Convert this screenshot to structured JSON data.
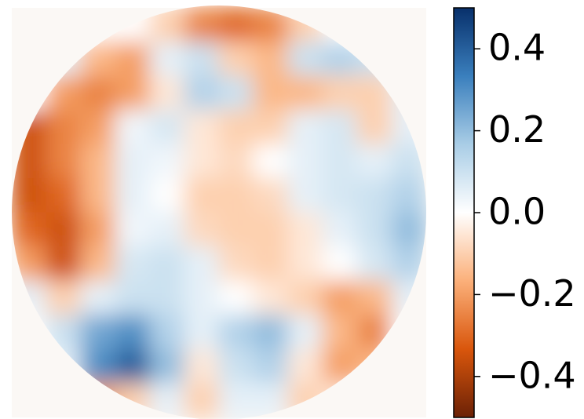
{
  "chart_data": {
    "type": "heatmap",
    "z": [
      [
        0,
        0,
        0,
        0,
        -0.1,
        -0.25,
        -0.3,
        -0.25,
        -0.1,
        0,
        0,
        0
      ],
      [
        0,
        0.05,
        -0.15,
        -0.2,
        0.05,
        0.1,
        -0.1,
        -0.15,
        0.1,
        0.15,
        0.1,
        0
      ],
      [
        0,
        -0.2,
        -0.25,
        -0.2,
        -0.05,
        0.15,
        0.1,
        -0.15,
        -0.15,
        -0.1,
        -0.1,
        0.05
      ],
      [
        -0.35,
        -0.25,
        -0.2,
        0.03,
        0.08,
        -0.05,
        -0.1,
        -0.1,
        0.05,
        0.08,
        -0.1,
        0.05
      ],
      [
        -0.35,
        -0.25,
        -0.15,
        0.05,
        0.03,
        -0.05,
        -0.08,
        0,
        0.05,
        0.08,
        0.05,
        0.1
      ],
      [
        -0.35,
        -0.3,
        -0.15,
        0.05,
        0,
        -0.1,
        -0.1,
        -0.08,
        0.05,
        0.08,
        0.1,
        0.15
      ],
      [
        -0.3,
        -0.35,
        -0.2,
        0.03,
        0.05,
        -0.08,
        -0.1,
        -0.1,
        -0.05,
        0.05,
        0.1,
        0.2
      ],
      [
        -0.2,
        -0.35,
        -0.15,
        0.08,
        0.1,
        0.05,
        -0.08,
        -0.1,
        -0.05,
        0,
        0.08,
        0.15
      ],
      [
        0.05,
        -0.1,
        0.05,
        0.1,
        0.1,
        0.05,
        0,
        -0.05,
        -0.1,
        -0.2,
        -0.15,
        0.05
      ],
      [
        0,
        0.1,
        0.25,
        0.3,
        0.15,
        0.05,
        0.15,
        0.2,
        0.05,
        -0.15,
        -0.25,
        0
      ],
      [
        0,
        0.05,
        0.3,
        0.4,
        0.2,
        -0.05,
        0.1,
        0.15,
        -0.05,
        -0.2,
        -0.15,
        0
      ],
      [
        0,
        0,
        -0.2,
        -0.1,
        0.05,
        -0.1,
        0.05,
        0.05,
        -0.1,
        -0.05,
        0,
        0
      ]
    ],
    "clim": [
      -0.5,
      0.5
    ],
    "colormap": [
      "#6b2106",
      "#d9560c",
      "#fbb07a",
      "#ffffff",
      "#a9cde6",
      "#3a7fbd",
      "#08306b"
    ],
    "cticks": [
      {
        "value": -0.4,
        "label": "−0.4"
      },
      {
        "value": -0.2,
        "label": "−0.2"
      },
      {
        "value": 0,
        "label": "0.0"
      },
      0.2,
      0.4
    ]
  }
}
